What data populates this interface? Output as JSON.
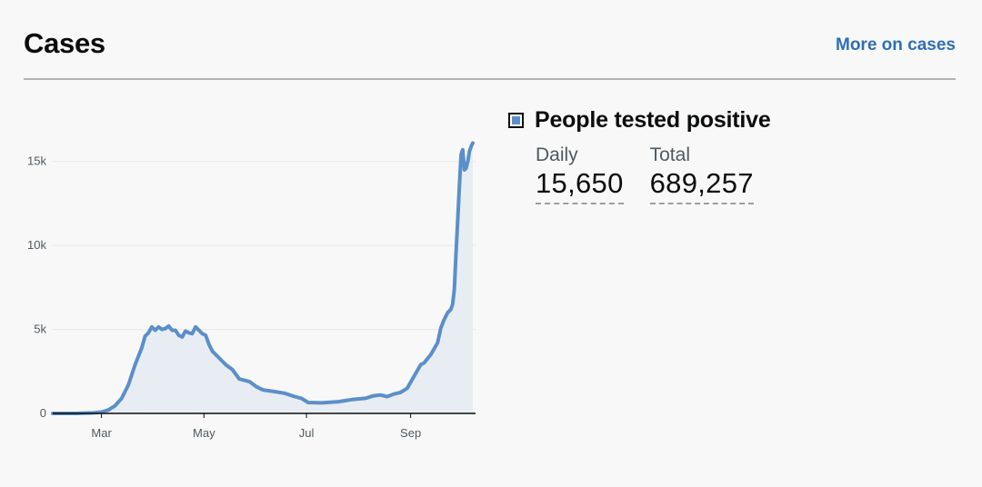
{
  "header": {
    "title": "Cases",
    "more_link": "More on cases"
  },
  "metric": {
    "title": "People tested positive",
    "daily_label": "Daily",
    "daily_value": "15,650",
    "total_label": "Total",
    "total_value": "689,257"
  },
  "colors": {
    "line": "#5b8fc9",
    "area": "#e8edf3",
    "link": "#2f6fb6"
  },
  "chart_data": {
    "type": "area",
    "title": "",
    "xlabel": "",
    "ylabel": "",
    "grid": true,
    "ylim": [
      0,
      16500
    ],
    "yticks": [
      0,
      5000,
      10000,
      15000
    ],
    "ytick_labels": [
      "0",
      "5k",
      "10k",
      "15k"
    ],
    "xticks": [
      "2020-03-01",
      "2020-05-01",
      "2020-07-01",
      "2020-09-01"
    ],
    "xtick_labels": [
      "Mar",
      "May",
      "Jul",
      "Sep"
    ],
    "series": [
      {
        "name": "People tested positive",
        "x": [
          "2020-02-01",
          "2020-02-15",
          "2020-02-25",
          "2020-03-01",
          "2020-03-05",
          "2020-03-09",
          "2020-03-13",
          "2020-03-17",
          "2020-03-21",
          "2020-03-25",
          "2020-03-27",
          "2020-03-29",
          "2020-03-31",
          "2020-04-02",
          "2020-04-04",
          "2020-04-06",
          "2020-04-08",
          "2020-04-10",
          "2020-04-12",
          "2020-04-14",
          "2020-04-16",
          "2020-04-18",
          "2020-04-20",
          "2020-04-22",
          "2020-04-24",
          "2020-04-26",
          "2020-04-28",
          "2020-04-30",
          "2020-05-02",
          "2020-05-04",
          "2020-05-06",
          "2020-05-10",
          "2020-05-14",
          "2020-05-18",
          "2020-05-22",
          "2020-05-28",
          "2020-06-01",
          "2020-06-05",
          "2020-06-12",
          "2020-06-18",
          "2020-06-24",
          "2020-06-28",
          "2020-07-02",
          "2020-07-10",
          "2020-07-20",
          "2020-07-28",
          "2020-08-05",
          "2020-08-10",
          "2020-08-14",
          "2020-08-18",
          "2020-08-22",
          "2020-08-26",
          "2020-08-30",
          "2020-09-03",
          "2020-09-07",
          "2020-09-09",
          "2020-09-13",
          "2020-09-17",
          "2020-09-19",
          "2020-09-21",
          "2020-09-23",
          "2020-09-25",
          "2020-09-26",
          "2020-09-27",
          "2020-09-28",
          "2020-09-29",
          "2020-09-30",
          "2020-10-01",
          "2020-10-02",
          "2020-10-03",
          "2020-10-04",
          "2020-10-05",
          "2020-10-06",
          "2020-10-07",
          "2020-10-08"
        ],
        "y": [
          0,
          0,
          30,
          80,
          200,
          450,
          900,
          1700,
          2900,
          3900,
          4600,
          4800,
          5150,
          4950,
          5150,
          5000,
          5050,
          5200,
          4950,
          4950,
          4650,
          4550,
          4900,
          4800,
          4750,
          5150,
          4950,
          4750,
          4650,
          4100,
          3700,
          3300,
          2900,
          2600,
          2050,
          1900,
          1600,
          1400,
          1300,
          1200,
          1000,
          900,
          650,
          630,
          700,
          820,
          900,
          1050,
          1100,
          1000,
          1150,
          1250,
          1500,
          2200,
          2900,
          3000,
          3500,
          4200,
          5100,
          5600,
          6000,
          6200,
          6500,
          7400,
          9500,
          11500,
          13500,
          15400,
          15700,
          14500,
          14600,
          15000,
          15600,
          15900,
          16100
        ]
      }
    ]
  }
}
